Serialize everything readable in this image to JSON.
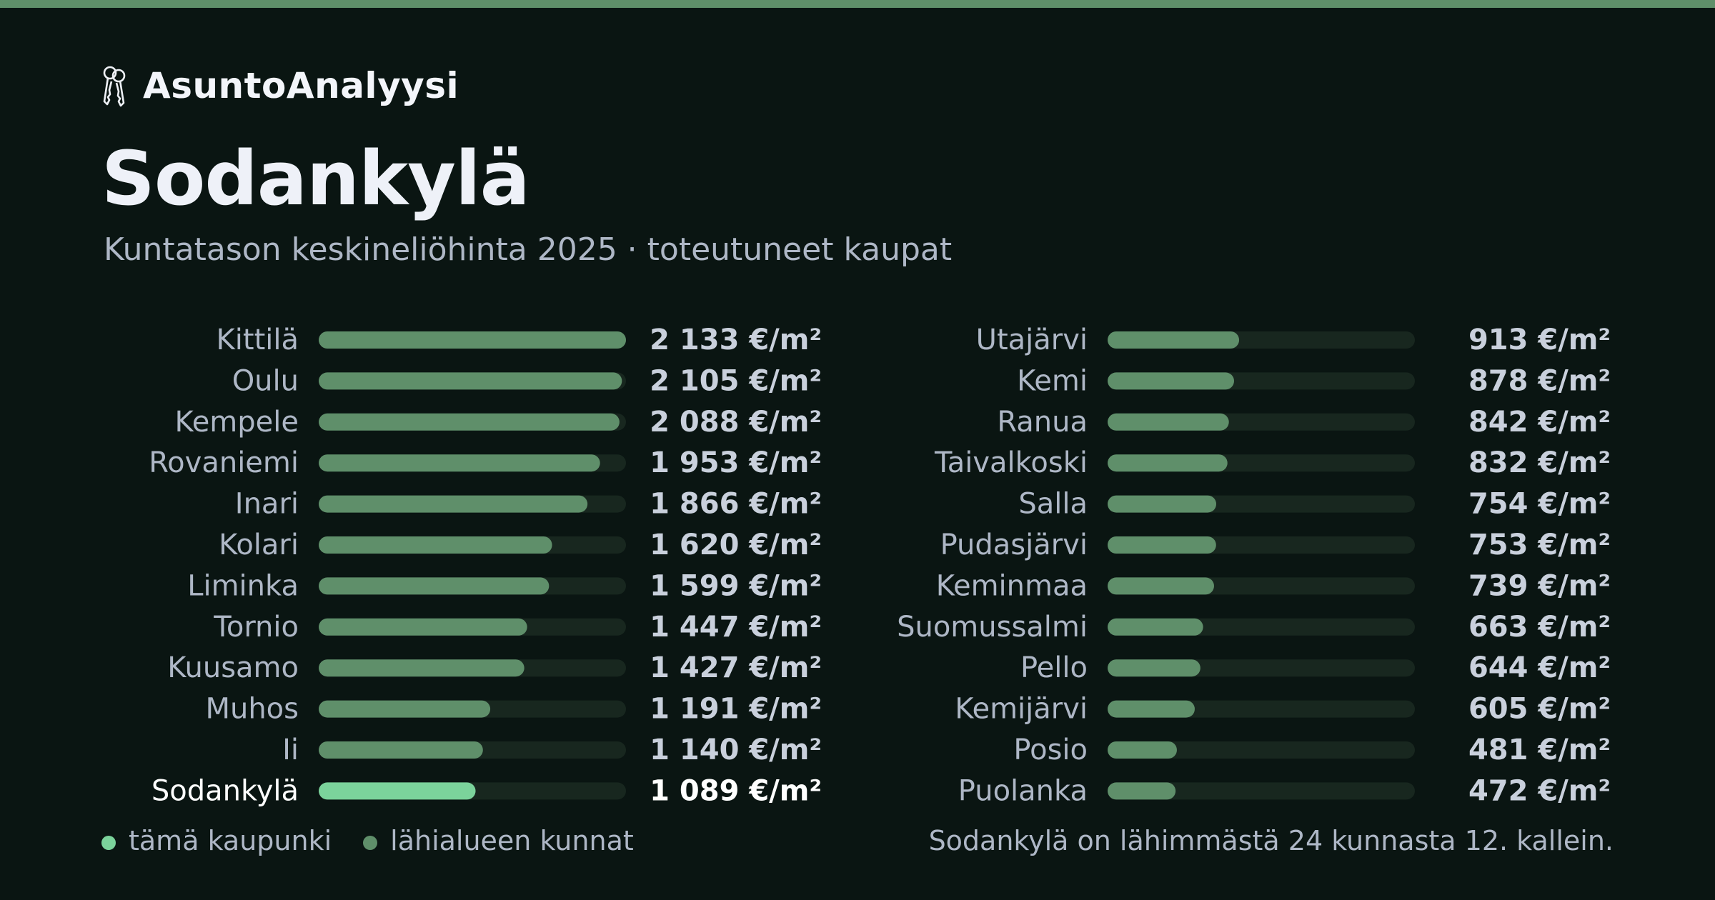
{
  "brand": {
    "name": "AsuntoAnalyysi",
    "icon": "keys-icon"
  },
  "city": "Sodankylä",
  "subtitle": "Kuntatason keskineliöhinta 2025 · toteutuneet kaupat",
  "colors": {
    "background": "#0a1512",
    "accent": "#5f8f6a",
    "highlight": "#7bd39b",
    "track": "#18271f",
    "label": "#aeb7c6",
    "value": "#c9d0dc",
    "highlight_text": "#ffffff"
  },
  "chart_data": {
    "type": "bar",
    "orientation": "horizontal",
    "unit": "€/m²",
    "xlim": [
      0,
      2133
    ],
    "highlight": "Sodankylä",
    "categories": [
      "Kittilä",
      "Oulu",
      "Kempele",
      "Rovaniemi",
      "Inari",
      "Kolari",
      "Liminka",
      "Tornio",
      "Kuusamo",
      "Muhos",
      "Ii",
      "Sodankylä",
      "Utajärvi",
      "Kemi",
      "Ranua",
      "Taivalkoski",
      "Salla",
      "Pudasjärvi",
      "Keminmaa",
      "Suomussalmi",
      "Pello",
      "Kemijärvi",
      "Posio",
      "Puolanka"
    ],
    "values": [
      2133,
      2105,
      2088,
      1953,
      1866,
      1620,
      1599,
      1447,
      1427,
      1191,
      1140,
      1089,
      913,
      878,
      842,
      832,
      754,
      753,
      739,
      663,
      644,
      605,
      481,
      472
    ],
    "value_labels": [
      "2 133 €/m²",
      "2 105 €/m²",
      "2 088 €/m²",
      "1 953 €/m²",
      "1 866 €/m²",
      "1 620 €/m²",
      "1 599 €/m²",
      "1 447 €/m²",
      "1 427 €/m²",
      "1 191 €/m²",
      "1 140 €/m²",
      "1 089 €/m²",
      "913 €/m²",
      "878 €/m²",
      "842 €/m²",
      "832 €/m²",
      "754 €/m²",
      "753 €/m²",
      "739 €/m²",
      "663 €/m²",
      "644 €/m²",
      "605 €/m²",
      "481 €/m²",
      "472 €/m²"
    ],
    "layout": "two-column",
    "legend": [
      {
        "label": "tämä kaupunki"
      },
      {
        "label": "lähialueen kunnat"
      }
    ]
  },
  "footnote": "Sodankylä on lähimmästä 24 kunnasta 12. kallein."
}
